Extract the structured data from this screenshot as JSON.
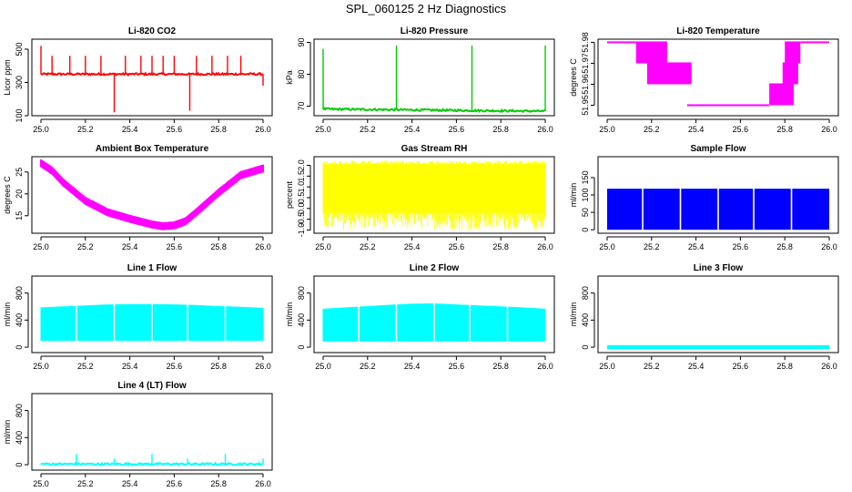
{
  "page_title": "SPL_060125  2 Hz Diagnostics",
  "chart_data": [
    {
      "type": "line",
      "name": "li820-co2",
      "title": "Li-820 CO2",
      "ylabel": "Licor ppm",
      "color": "#ff0000",
      "xlim": [
        25.0,
        26.0
      ],
      "ylim": [
        100,
        560
      ],
      "xticks": [
        25.0,
        25.2,
        25.4,
        25.6,
        25.8,
        26.0
      ],
      "xtick_labels": [
        "25.0",
        "25.2",
        "25.4",
        "25.6",
        "25.8",
        "26.0"
      ],
      "yticks": [
        100,
        300,
        500
      ],
      "ytick_labels": [
        "100",
        "300",
        "500"
      ],
      "series": [
        {
          "name": "baseline",
          "x": [
            25.0,
            26.0
          ],
          "values": [
            350,
            350
          ]
        }
      ],
      "spikes": [
        {
          "x": 25.0,
          "y": 520
        },
        {
          "x": 25.05,
          "y": 460
        },
        {
          "x": 25.13,
          "y": 460
        },
        {
          "x": 25.2,
          "y": 460
        },
        {
          "x": 25.27,
          "y": 460
        },
        {
          "x": 25.33,
          "y": 120
        },
        {
          "x": 25.38,
          "y": 460
        },
        {
          "x": 25.45,
          "y": 460
        },
        {
          "x": 25.5,
          "y": 460
        },
        {
          "x": 25.55,
          "y": 460
        },
        {
          "x": 25.6,
          "y": 460
        },
        {
          "x": 25.67,
          "y": 130
        },
        {
          "x": 25.7,
          "y": 460
        },
        {
          "x": 25.77,
          "y": 460
        },
        {
          "x": 25.84,
          "y": 460
        },
        {
          "x": 25.9,
          "y": 460
        },
        {
          "x": 26.0,
          "y": 280
        }
      ]
    },
    {
      "type": "line",
      "name": "li820-pressure",
      "title": "Li-820 Pressure",
      "ylabel": "kPa",
      "color": "#00cc00",
      "xlim": [
        25.0,
        26.0
      ],
      "ylim": [
        67,
        91
      ],
      "xticks": [
        25.0,
        25.2,
        25.4,
        25.6,
        25.8,
        26.0
      ],
      "xtick_labels": [
        "25.0",
        "25.2",
        "25.4",
        "25.6",
        "25.8",
        "26.0"
      ],
      "yticks": [
        70,
        80,
        90
      ],
      "ytick_labels": [
        "70",
        "80",
        "90"
      ],
      "series": [
        {
          "name": "pressure",
          "x": [
            25.0,
            26.0
          ],
          "values": [
            69.1,
            68.4
          ]
        }
      ],
      "spikes": [
        {
          "x": 25.0,
          "y": 88
        },
        {
          "x": 25.33,
          "y": 89
        },
        {
          "x": 25.67,
          "y": 89
        },
        {
          "x": 26.0,
          "y": 89
        }
      ]
    },
    {
      "type": "line",
      "name": "li820-temperature",
      "title": "Li-820 Temperature",
      "ylabel": "degrees C",
      "color": "#ff00ff",
      "xlim": [
        25.0,
        26.0
      ],
      "ylim": [
        51.945,
        51.9815
      ],
      "xticks": [
        25.0,
        25.2,
        25.4,
        25.6,
        25.8,
        26.0
      ],
      "xtick_labels": [
        "25.0",
        "25.2",
        "25.4",
        "25.6",
        "25.8",
        "26.0"
      ],
      "yticks": [
        51.95,
        51.96,
        51.97,
        51.98
      ],
      "ytick_labels": [
        "51.95",
        "51.96",
        "51.97",
        "51.98"
      ],
      "levels": [
        51.98,
        51.97,
        51.96,
        51.95
      ],
      "segments": [
        {
          "x0": 25.0,
          "x1": 25.13,
          "y0": 51.98,
          "y1": 51.98
        },
        {
          "x0": 25.13,
          "x1": 25.27,
          "y0": 51.97,
          "y1": 51.98
        },
        {
          "x0": 25.18,
          "x1": 25.38,
          "y0": 51.96,
          "y1": 51.97
        },
        {
          "x0": 25.36,
          "x1": 25.73,
          "y0": 51.95,
          "y1": 51.95
        },
        {
          "x0": 25.73,
          "x1": 25.84,
          "y0": 51.95,
          "y1": 51.96
        },
        {
          "x0": 25.79,
          "x1": 25.86,
          "y0": 51.96,
          "y1": 51.97
        },
        {
          "x0": 25.8,
          "x1": 25.87,
          "y0": 51.97,
          "y1": 51.98
        },
        {
          "x0": 25.87,
          "x1": 26.0,
          "y0": 51.98,
          "y1": 51.98
        }
      ]
    },
    {
      "type": "line",
      "name": "ambient-box-temperature",
      "title": "Ambient Box Temperature",
      "ylabel": "degrees C",
      "color": "#ff00ff",
      "xlim": [
        25.0,
        26.0
      ],
      "ylim": [
        11.0,
        28.5
      ],
      "xticks": [
        25.0,
        25.2,
        25.4,
        25.6,
        25.8,
        26.0
      ],
      "xtick_labels": [
        "25.0",
        "25.2",
        "25.4",
        "25.6",
        "25.8",
        "26.0"
      ],
      "yticks": [
        15,
        20,
        25
      ],
      "ytick_labels": [
        "15",
        "20",
        "25"
      ],
      "series": [
        {
          "name": "temperature",
          "x": [
            25.0,
            25.05,
            25.1,
            25.2,
            25.3,
            25.4,
            25.5,
            25.55,
            25.6,
            25.65,
            25.7,
            25.8,
            25.9,
            26.0
          ],
          "values": [
            27.0,
            25.3,
            22.6,
            18.4,
            15.8,
            14.3,
            13.0,
            12.6,
            12.8,
            13.7,
            15.8,
            20.3,
            24.3,
            25.8
          ]
        }
      ]
    },
    {
      "type": "area",
      "name": "gas-stream-rh",
      "title": "Gas Stream RH",
      "ylabel": "percent",
      "color": "#ffff00",
      "xlim": [
        25.0,
        26.0
      ],
      "ylim": [
        -1.15,
        2.4
      ],
      "xticks": [
        25.0,
        25.2,
        25.4,
        25.6,
        25.8,
        26.0
      ],
      "xtick_labels": [
        "25.0",
        "25.2",
        "25.4",
        "25.6",
        "25.8",
        "26.0"
      ],
      "yticks": [
        -1.0,
        -0.5,
        0.0,
        0.5,
        1.0,
        1.5,
        2.0
      ],
      "ytick_labels": [
        "-1.0",
        "-0.5",
        "0.0",
        "0.5",
        "1.0",
        "1.5",
        "2.0"
      ],
      "band": {
        "low": -0.2,
        "high": 2.05,
        "min": -1.0,
        "max": 2.25
      }
    },
    {
      "type": "area",
      "name": "sample-flow",
      "title": "Sample Flow",
      "ylabel": "ml/min",
      "color": "#0000ff",
      "xlim": [
        25.0,
        26.0
      ],
      "ylim": [
        -10,
        210
      ],
      "xticks": [
        25.0,
        25.2,
        25.4,
        25.6,
        25.8,
        26.0
      ],
      "xtick_labels": [
        "25.0",
        "25.2",
        "25.4",
        "25.6",
        "25.8",
        "26.0"
      ],
      "yticks": [
        0,
        50,
        100,
        150
      ],
      "ytick_labels": [
        "0",
        "50",
        "100",
        "150"
      ],
      "band": {
        "low": 0,
        "high": 118
      },
      "gaps": [
        25.16,
        25.33,
        25.5,
        25.66,
        25.83
      ]
    },
    {
      "type": "area",
      "name": "line-1-flow",
      "title": "Line 1 Flow",
      "ylabel": "ml/min",
      "color": "#00ffff",
      "xlim": [
        25.0,
        26.0
      ],
      "ylim": [
        -80,
        1050
      ],
      "xticks": [
        25.0,
        25.2,
        25.4,
        25.6,
        25.8,
        26.0
      ],
      "xtick_labels": [
        "25.0",
        "25.2",
        "25.4",
        "25.6",
        "25.8",
        "26.0"
      ],
      "yticks": [
        0,
        400,
        800
      ],
      "ytick_labels": [
        "0",
        "400",
        "800"
      ],
      "band_x": [
        25.0,
        25.1,
        25.2,
        25.3,
        25.4,
        25.5,
        25.6,
        25.7,
        25.8,
        25.9,
        26.0
      ],
      "band_high": [
        580,
        595,
        610,
        625,
        630,
        630,
        625,
        615,
        600,
        590,
        575
      ],
      "band_low": 100,
      "gaps": [
        25.16,
        25.33,
        25.5,
        25.66,
        25.83
      ]
    },
    {
      "type": "area",
      "name": "line-2-flow",
      "title": "Line 2 Flow",
      "ylabel": "ml/min",
      "color": "#00ffff",
      "xlim": [
        25.0,
        26.0
      ],
      "ylim": [
        -80,
        1050
      ],
      "xticks": [
        25.0,
        25.2,
        25.4,
        25.6,
        25.8,
        26.0
      ],
      "xtick_labels": [
        "25.0",
        "25.2",
        "25.4",
        "25.6",
        "25.8",
        "26.0"
      ],
      "yticks": [
        0,
        400,
        800
      ],
      "ytick_labels": [
        "0",
        "400",
        "800"
      ],
      "band_x": [
        25.0,
        25.1,
        25.2,
        25.3,
        25.4,
        25.5,
        25.6,
        25.7,
        25.8,
        25.9,
        26.0
      ],
      "band_high": [
        560,
        580,
        600,
        620,
        635,
        640,
        625,
        610,
        595,
        580,
        560
      ],
      "band_low": 90,
      "gaps": [
        25.16,
        25.33,
        25.5,
        25.66,
        25.83
      ]
    },
    {
      "type": "area",
      "name": "line-3-flow",
      "title": "Line 3 Flow",
      "ylabel": "ml/min",
      "color": "#00ffff",
      "xlim": [
        25.0,
        26.0
      ],
      "ylim": [
        -80,
        1050
      ],
      "xticks": [
        25.0,
        25.2,
        25.4,
        25.6,
        25.8,
        26.0
      ],
      "xtick_labels": [
        "25.0",
        "25.2",
        "25.4",
        "25.6",
        "25.8",
        "26.0"
      ],
      "yticks": [
        0,
        400,
        800
      ],
      "ytick_labels": [
        "0",
        "400",
        "800"
      ],
      "band": {
        "low": -30,
        "high": 30
      }
    },
    {
      "type": "line",
      "name": "line-4-lt-flow",
      "title": "Line 4 (LT) Flow",
      "ylabel": "ml/min",
      "color": "#00ffff",
      "xlim": [
        25.0,
        26.0
      ],
      "ylim": [
        -80,
        1050
      ],
      "xticks": [
        25.0,
        25.2,
        25.4,
        25.6,
        25.8,
        26.0
      ],
      "xtick_labels": [
        "25.0",
        "25.2",
        "25.4",
        "25.6",
        "25.8",
        "26.0"
      ],
      "yticks": [
        0,
        400,
        800
      ],
      "ytick_labels": [
        "0",
        "400",
        "800"
      ],
      "series": [
        {
          "name": "flow",
          "x": [
            25.0,
            26.0
          ],
          "values": [
            10,
            10
          ]
        }
      ],
      "spikes": [
        {
          "x": 25.16,
          "y": 160
        },
        {
          "x": 25.33,
          "y": 90
        },
        {
          "x": 25.5,
          "y": 160
        },
        {
          "x": 25.66,
          "y": 90
        },
        {
          "x": 25.83,
          "y": 160
        },
        {
          "x": 26.0,
          "y": 90
        }
      ]
    }
  ]
}
